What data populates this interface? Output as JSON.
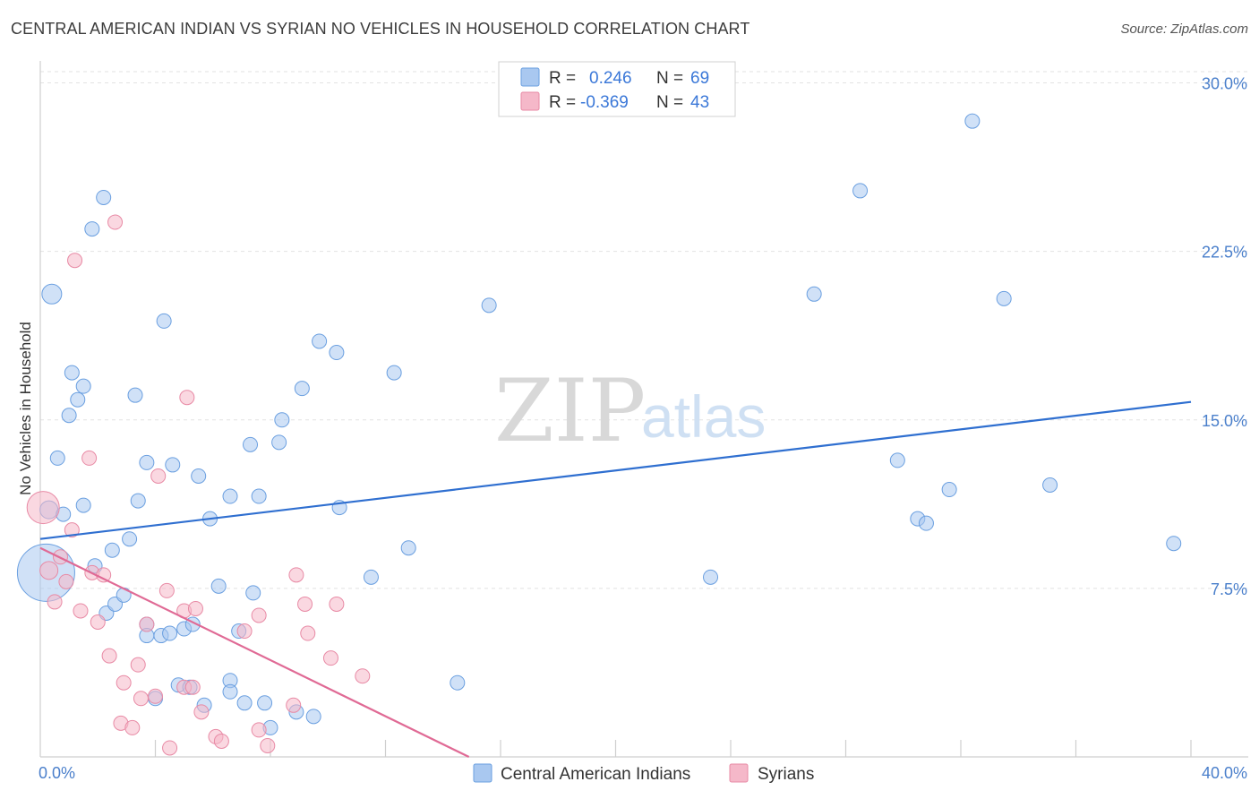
{
  "header": {
    "title": "CENTRAL AMERICAN INDIAN VS SYRIAN NO VEHICLES IN HOUSEHOLD CORRELATION CHART",
    "source": "Source: ZipAtlas.com"
  },
  "watermark": {
    "zip": "ZIP",
    "atlas": "atlas"
  },
  "legend": {
    "rows": [
      {
        "r_label": "R =",
        "r_value": "0.246",
        "n_label": "N =",
        "n_value": "69",
        "color": "#a9c8f0"
      },
      {
        "r_label": "R =",
        "r_value": "-0.369",
        "n_label": "N =",
        "n_value": "43",
        "color": "#f5b8c9"
      }
    ]
  },
  "bottom_legend": {
    "items": [
      {
        "label": "Central American Indians",
        "color": "#a9c8f0"
      },
      {
        "label": "Syrians",
        "color": "#f5b8c9"
      }
    ]
  },
  "chart_data": {
    "type": "scatter",
    "title": "CENTRAL AMERICAN INDIAN VS SYRIAN NO VEHICLES IN HOUSEHOLD CORRELATION CHART",
    "xlabel": "",
    "ylabel": "No Vehicles in Household",
    "xlim": [
      0,
      40
    ],
    "ylim": [
      0,
      30.5
    ],
    "x_tick_labels": [
      "0.0%",
      "40.0%"
    ],
    "y_ticks": [
      7.5,
      15.0,
      22.5,
      30.0
    ],
    "y_tick_labels": [
      "7.5%",
      "15.0%",
      "22.5%",
      "30.0%"
    ],
    "grid": true,
    "legend_position": "top-center",
    "series": [
      {
        "name": "Central American Indians",
        "color": "#a9c8f0",
        "stroke": "#6a9fe0",
        "trend": {
          "x": [
            0,
            40
          ],
          "y": [
            9.7,
            15.8
          ],
          "color": "#2f6fd0"
        },
        "points": [
          [
            0.2,
            8.2,
            32
          ],
          [
            0.4,
            20.6,
            11
          ],
          [
            0.3,
            11.0,
            10
          ],
          [
            0.6,
            13.3,
            8
          ],
          [
            0.8,
            10.8,
            8
          ],
          [
            1.0,
            15.2,
            8
          ],
          [
            1.1,
            17.1,
            8
          ],
          [
            1.3,
            15.9,
            8
          ],
          [
            1.5,
            16.5,
            8
          ],
          [
            1.5,
            11.2,
            8
          ],
          [
            1.8,
            23.5,
            8
          ],
          [
            2.2,
            24.9,
            8
          ],
          [
            2.5,
            9.2,
            8
          ],
          [
            1.9,
            8.5,
            8
          ],
          [
            2.3,
            6.4,
            8
          ],
          [
            2.6,
            6.8,
            8
          ],
          [
            2.9,
            7.2,
            8
          ],
          [
            3.1,
            9.7,
            8
          ],
          [
            3.3,
            16.1,
            8
          ],
          [
            3.4,
            11.4,
            8
          ],
          [
            3.7,
            13.1,
            8
          ],
          [
            3.7,
            5.9,
            8
          ],
          [
            3.7,
            5.4,
            8
          ],
          [
            4.0,
            2.6,
            8
          ],
          [
            4.2,
            5.4,
            8
          ],
          [
            4.5,
            5.5,
            8
          ],
          [
            4.3,
            19.4,
            8
          ],
          [
            4.6,
            13.0,
            8
          ],
          [
            4.8,
            3.2,
            8
          ],
          [
            5.0,
            5.7,
            8
          ],
          [
            5.2,
            3.1,
            8
          ],
          [
            5.3,
            5.9,
            8
          ],
          [
            5.5,
            12.5,
            8
          ],
          [
            5.7,
            2.3,
            8
          ],
          [
            5.9,
            10.6,
            8
          ],
          [
            6.2,
            7.6,
            8
          ],
          [
            6.6,
            3.4,
            8
          ],
          [
            6.6,
            2.9,
            8
          ],
          [
            6.6,
            11.6,
            8
          ],
          [
            6.9,
            5.6,
            8
          ],
          [
            7.1,
            2.4,
            8
          ],
          [
            7.4,
            7.3,
            8
          ],
          [
            7.3,
            13.9,
            8
          ],
          [
            7.6,
            11.6,
            8
          ],
          [
            7.8,
            2.4,
            8
          ],
          [
            8.0,
            1.3,
            8
          ],
          [
            8.3,
            14.0,
            8
          ],
          [
            8.4,
            15.0,
            8
          ],
          [
            8.9,
            2.0,
            8
          ],
          [
            9.1,
            16.4,
            8
          ],
          [
            9.5,
            1.8,
            8
          ],
          [
            9.7,
            18.5,
            8
          ],
          [
            10.3,
            18.0,
            8
          ],
          [
            10.4,
            11.1,
            8
          ],
          [
            11.5,
            8.0,
            8
          ],
          [
            12.3,
            17.1,
            8
          ],
          [
            12.8,
            9.3,
            8
          ],
          [
            14.5,
            3.3,
            8
          ],
          [
            15.6,
            20.1,
            8
          ],
          [
            23.3,
            8.0,
            8
          ],
          [
            26.9,
            20.6,
            8
          ],
          [
            28.5,
            25.2,
            8
          ],
          [
            29.8,
            13.2,
            8
          ],
          [
            30.5,
            10.6,
            8
          ],
          [
            30.8,
            10.4,
            8
          ],
          [
            31.6,
            11.9,
            8
          ],
          [
            32.4,
            28.3,
            8
          ],
          [
            33.5,
            20.4,
            8
          ],
          [
            35.1,
            12.1,
            8
          ],
          [
            39.4,
            9.5,
            8
          ]
        ]
      },
      {
        "name": "Syrians",
        "color": "#f5b8c9",
        "stroke": "#e88aa5",
        "trend": {
          "x": [
            0,
            14.9
          ],
          "y": [
            9.3,
            0.0
          ],
          "color": "#e06a95"
        },
        "points": [
          [
            0.1,
            11.1,
            18
          ],
          [
            0.3,
            8.3,
            10
          ],
          [
            0.5,
            6.9,
            8
          ],
          [
            0.7,
            8.9,
            8
          ],
          [
            0.9,
            7.8,
            8
          ],
          [
            1.1,
            10.1,
            8
          ],
          [
            1.4,
            6.5,
            8
          ],
          [
            1.7,
            13.3,
            8
          ],
          [
            1.8,
            8.2,
            8
          ],
          [
            2.0,
            6.0,
            8
          ],
          [
            2.2,
            8.1,
            8
          ],
          [
            2.4,
            4.5,
            8
          ],
          [
            2.6,
            23.8,
            8
          ],
          [
            2.9,
            3.3,
            8
          ],
          [
            2.8,
            1.5,
            8
          ],
          [
            3.2,
            1.3,
            8
          ],
          [
            3.4,
            4.1,
            8
          ],
          [
            3.5,
            2.6,
            8
          ],
          [
            3.7,
            5.9,
            8
          ],
          [
            4.0,
            2.7,
            8
          ],
          [
            4.1,
            12.5,
            8
          ],
          [
            4.4,
            7.4,
            8
          ],
          [
            4.5,
            0.4,
            8
          ],
          [
            5.0,
            3.1,
            8
          ],
          [
            5.0,
            6.5,
            8
          ],
          [
            5.1,
            16.0,
            8
          ],
          [
            5.3,
            3.1,
            8
          ],
          [
            5.4,
            6.6,
            8
          ],
          [
            5.6,
            2.0,
            8
          ],
          [
            6.1,
            0.9,
            8
          ],
          [
            6.3,
            0.7,
            8
          ],
          [
            7.1,
            5.6,
            8
          ],
          [
            7.6,
            6.3,
            8
          ],
          [
            7.9,
            0.5,
            8
          ],
          [
            7.6,
            1.2,
            8
          ],
          [
            8.8,
            2.3,
            8
          ],
          [
            8.9,
            8.1,
            8
          ],
          [
            9.2,
            6.8,
            8
          ],
          [
            9.3,
            5.5,
            8
          ],
          [
            10.1,
            4.4,
            8
          ],
          [
            10.3,
            6.8,
            8
          ],
          [
            11.2,
            3.6,
            8
          ],
          [
            1.2,
            22.1,
            8
          ]
        ]
      }
    ]
  }
}
